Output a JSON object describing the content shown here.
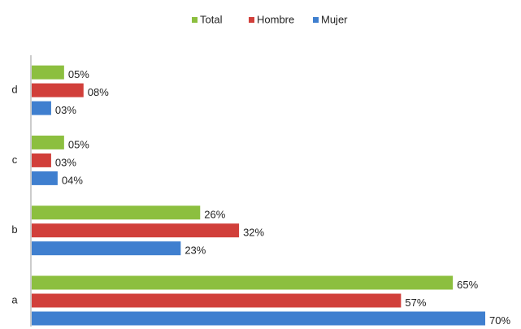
{
  "chart_data": {
    "type": "bar",
    "orientation": "horizontal",
    "categories": [
      "a",
      "b",
      "c",
      "d"
    ],
    "series": [
      {
        "name": "Total",
        "color": "#8cbf3f",
        "values": [
          65,
          26,
          5,
          5
        ],
        "value_labels": [
          "65%",
          "26%",
          "05%",
          "05%"
        ]
      },
      {
        "name": "Hombre",
        "color": "#d13f3a",
        "values": [
          57,
          32,
          3,
          8
        ],
        "value_labels": [
          "57%",
          "32%",
          "03%",
          "08%"
        ]
      },
      {
        "name": "Mujer",
        "color": "#3f7fcf",
        "values": [
          70,
          23,
          4,
          3
        ],
        "value_labels": [
          "70%",
          "23%",
          "04%",
          "03%"
        ]
      }
    ],
    "legend": "top"
  }
}
